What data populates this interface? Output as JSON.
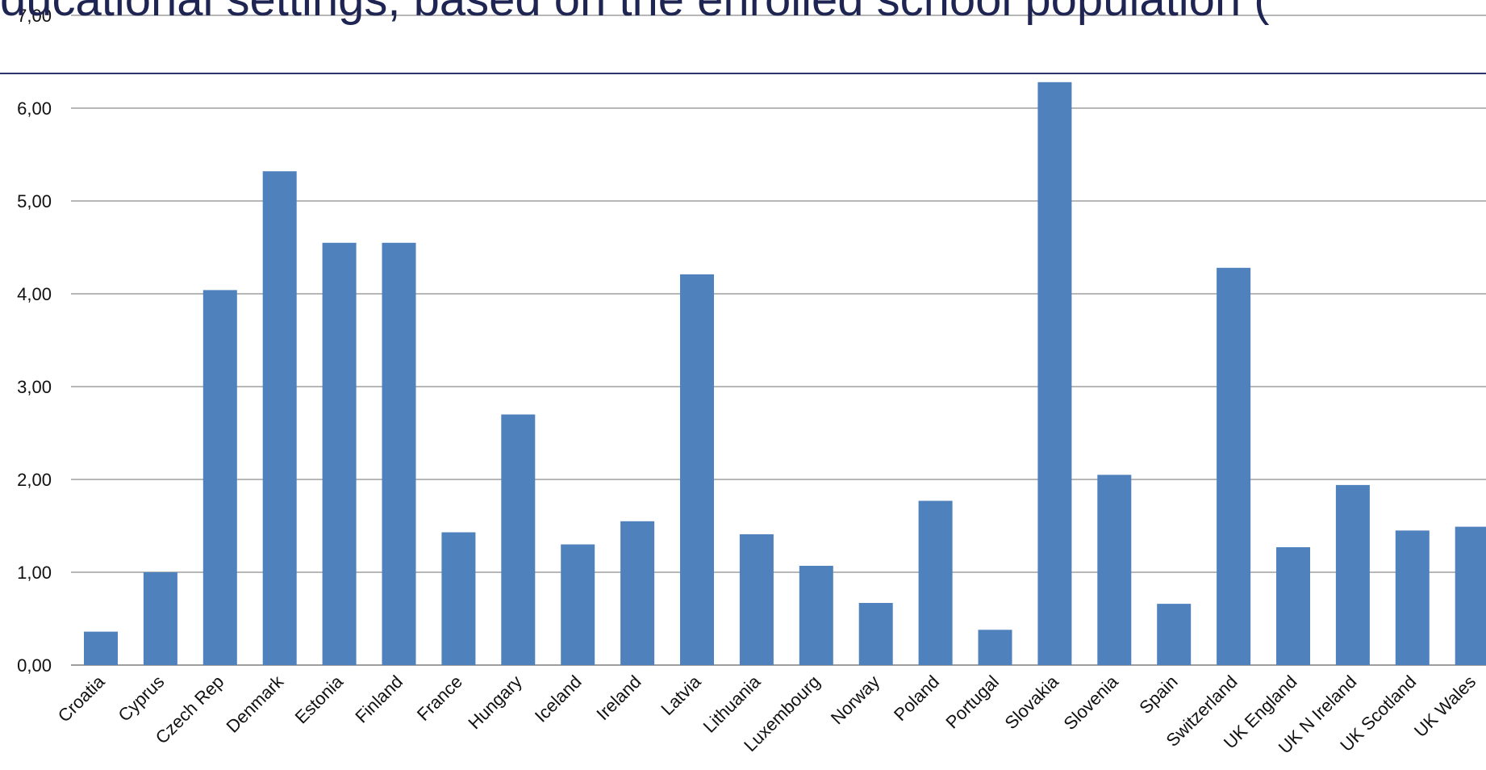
{
  "chart_data": {
    "type": "bar",
    "title": "ducational settings, based on the enrolled school population (",
    "xlabel": "",
    "ylabel": "",
    "ylim": [
      0,
      7
    ],
    "yticks": [
      "0,00",
      "1,00",
      "2,00",
      "3,00",
      "4,00",
      "5,00",
      "6,00",
      "7,00"
    ],
    "grid": true,
    "bar_color": "#4f81bd",
    "categories": [
      "Croatia",
      "Cyprus",
      "Czech Rep",
      "Denmark",
      "Estonia",
      "Finland",
      "France",
      "Hungary",
      "Iceland",
      "Ireland",
      "Latvia",
      "Lithuania",
      "Luxembourg",
      "Norway",
      "Poland",
      "Portugal",
      "Slovakia",
      "Slovenia",
      "Spain",
      "Switzerland",
      "UK England",
      "UK N Ireland",
      "UK Scotland",
      "UK Wales"
    ],
    "values": [
      0.36,
      1.0,
      4.04,
      5.32,
      4.55,
      4.55,
      1.43,
      2.7,
      1.3,
      1.55,
      4.21,
      1.41,
      1.07,
      0.67,
      1.77,
      0.38,
      6.28,
      2.05,
      0.66,
      4.28,
      1.27,
      1.94,
      1.45,
      1.49
    ]
  }
}
